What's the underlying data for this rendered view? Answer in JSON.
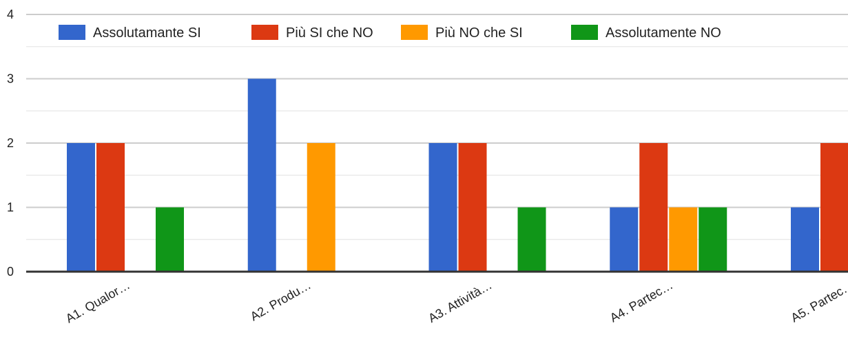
{
  "chart_data": {
    "type": "bar",
    "categories": [
      "A1. Qualor…",
      "A2. Produ…",
      "A3. Attività…",
      "A4. Partec…",
      "A5. Partec…"
    ],
    "series": [
      {
        "name": "Assolutamante SI",
        "color": "#3366cc",
        "values": [
          2,
          3,
          2,
          1,
          1
        ]
      },
      {
        "name": "Più SI che NO",
        "color": "#dc3912",
        "values": [
          2,
          0,
          2,
          2,
          2
        ]
      },
      {
        "name": "Più NO che SI",
        "color": "#ff9900",
        "values": [
          0,
          2,
          0,
          1,
          0
        ]
      },
      {
        "name": "Assolutamente NO",
        "color": "#109618",
        "values": [
          1,
          0,
          1,
          1,
          0
        ]
      }
    ],
    "yticks": [
      "0",
      "1",
      "2",
      "3",
      "4"
    ],
    "ylim": [
      0,
      4
    ],
    "grid": true,
    "legend_position": "top",
    "title": "",
    "xlabel": "",
    "ylabel": ""
  }
}
